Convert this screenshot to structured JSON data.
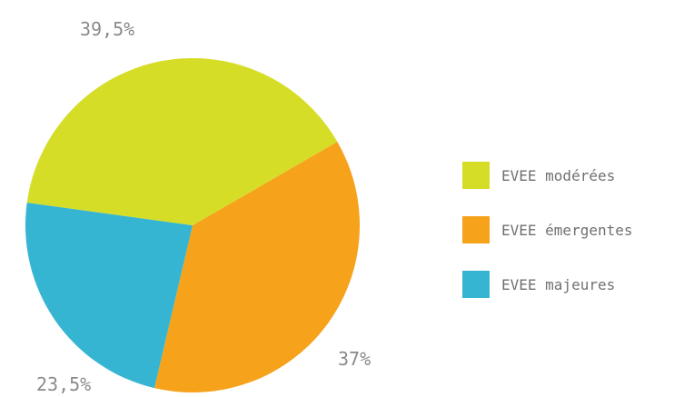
{
  "chart_data": {
    "type": "pie",
    "start_angle_deg": 60,
    "slices": [
      {
        "label": "EVEE émergentes",
        "value": 37,
        "display": "37%",
        "color": "#f7a21b"
      },
      {
        "label": "EVEE majeures",
        "value": 23.5,
        "display": "23,5%",
        "color": "#36b5d3"
      },
      {
        "label": "EVEE modérées",
        "value": 39.5,
        "display": "39,5%",
        "color": "#d6dd27"
      }
    ],
    "legend": {
      "placement": "right",
      "entries": [
        {
          "label": "EVEE modérées",
          "color": "#d6dd27"
        },
        {
          "label": "EVEE émergentes",
          "color": "#f7a21b"
        },
        {
          "label": "EVEE majeures",
          "color": "#36b5d3"
        }
      ]
    }
  }
}
